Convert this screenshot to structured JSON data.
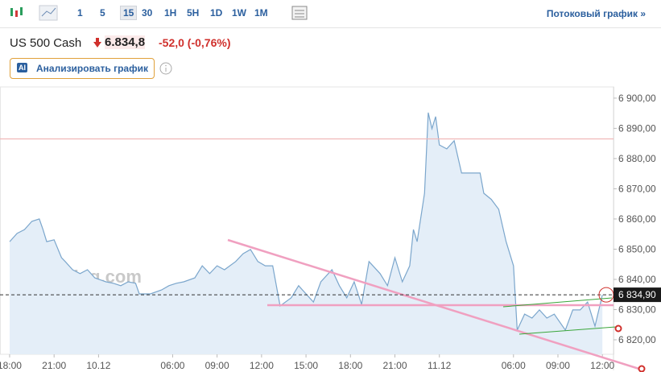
{
  "toolbar": {
    "intervals": [
      "1",
      "5",
      "15",
      "30",
      "1H",
      "5H",
      "1D",
      "1W",
      "1M"
    ],
    "active_interval": "15",
    "stream_link": "Потоковый график »"
  },
  "header": {
    "instrument": "US 500 Cash",
    "price": "6.834,8",
    "change": "-52,0 (-0,76%)",
    "ai_badge": "AI",
    "analyze_button": "Анализировать график"
  },
  "chart_data": {
    "type": "line",
    "watermark": "Investing.com",
    "color": "#7ba6cc",
    "fill_color": "#e4eef8",
    "xlim": [
      -2.6,
      163
    ],
    "xticks": [
      {
        "value": 0,
        "label": "18:00"
      },
      {
        "value": 12,
        "label": "21:00"
      },
      {
        "value": 24,
        "label": "10.12"
      },
      {
        "value": 44,
        "label": "06:00"
      },
      {
        "value": 56,
        "label": "09:00"
      },
      {
        "value": 68,
        "label": "12:00"
      },
      {
        "value": 80,
        "label": "15:00"
      },
      {
        "value": 92,
        "label": "18:00"
      },
      {
        "value": 104,
        "label": "21:00"
      },
      {
        "value": 116,
        "label": "11.12"
      },
      {
        "value": 136,
        "label": "06:00"
      },
      {
        "value": 148,
        "label": "09:00"
      },
      {
        "value": 160,
        "label": "12:00"
      }
    ],
    "ylim": [
      6815.2,
      6903.7
    ],
    "yticks": [
      {
        "value": 6820,
        "label": "6 820,00"
      },
      {
        "value": 6830,
        "label": "6 830,00"
      },
      {
        "value": 6840,
        "label": "6 840,00"
      },
      {
        "value": 6850,
        "label": "6 850,00"
      },
      {
        "value": 6860,
        "label": "6 860,00"
      },
      {
        "value": 6870,
        "label": "6 870,00"
      },
      {
        "value": 6880,
        "label": "6 880,00"
      },
      {
        "value": 6890,
        "label": "6 890,00"
      },
      {
        "value": 6900,
        "label": "6 900,00"
      }
    ],
    "x": [
      0,
      2,
      4,
      6,
      8,
      9,
      10,
      12,
      14,
      15,
      17,
      19,
      21,
      23,
      26,
      28,
      30,
      32,
      34,
      35,
      38,
      41,
      43,
      45,
      47,
      50,
      52,
      54,
      56,
      58,
      61,
      63,
      65,
      67,
      69,
      71,
      73,
      76,
      78,
      80,
      82,
      84,
      87,
      89,
      91,
      93,
      95,
      97,
      100,
      102,
      104,
      106,
      108,
      109,
      110,
      112,
      113,
      114,
      115,
      116,
      118,
      120,
      122,
      125,
      127,
      128,
      130,
      132,
      134,
      136,
      137,
      139,
      141,
      143,
      145,
      147,
      150,
      152,
      154,
      156,
      158,
      160
    ],
    "values": [
      6852.5,
      6855.2,
      6856.5,
      6859.2,
      6860,
      6856.5,
      6852.5,
      6853.1,
      6847.2,
      6845.9,
      6843.2,
      6841.9,
      6843.2,
      6840.5,
      6839.2,
      6838.7,
      6837.9,
      6839.2,
      6838.7,
      6835.2,
      6835.2,
      6836.5,
      6837.9,
      6838.7,
      6839.2,
      6840.5,
      6844.5,
      6841.9,
      6844.5,
      6843.2,
      6845.9,
      6848.5,
      6849.9,
      6845.9,
      6844.5,
      6844.5,
      6831.2,
      6833.9,
      6837.9,
      6835.2,
      6832.5,
      6839.2,
      6843.2,
      6837.9,
      6833.9,
      6839.2,
      6831.7,
      6845.9,
      6841.9,
      6837.9,
      6847.2,
      6839.2,
      6844.5,
      6856.5,
      6852.5,
      6868.5,
      6895.2,
      6889.9,
      6893.9,
      6884.5,
      6883.2,
      6885.9,
      6875.2,
      6875.2,
      6875.2,
      6868.5,
      6866.5,
      6863.2,
      6852.5,
      6844.5,
      6823.2,
      6828.5,
      6827.2,
      6829.9,
      6827.2,
      6828.5,
      6823.2,
      6829.9,
      6829.9,
      6832.5,
      6824.5,
      6834.9
    ],
    "reference_line": 6886.5,
    "last_price": {
      "value": 6834.9,
      "label": "6 834,90"
    }
  }
}
